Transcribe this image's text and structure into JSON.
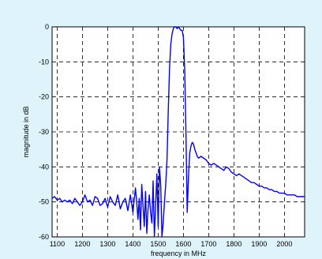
{
  "chart_data": {
    "type": "line",
    "title": "",
    "xlabel": "frequency in MHz",
    "ylabel": "magnitude in dB",
    "xlim": [
      1080,
      2080
    ],
    "ylim": [
      -60,
      0
    ],
    "xticks": [
      1100,
      1200,
      1300,
      1400,
      1500,
      1600,
      1700,
      1800,
      1900,
      2000
    ],
    "yticks": [
      0,
      -10,
      -20,
      -30,
      -40,
      -50,
      -60
    ],
    "grid": true,
    "grid_style": "dashed",
    "line_color": "#0000ff",
    "series": [
      {
        "x": [
          1080,
          1090,
          1100,
          1110,
          1120,
          1130,
          1140,
          1150,
          1160,
          1170,
          1180,
          1190,
          1200,
          1210,
          1220,
          1230,
          1240,
          1250,
          1260,
          1270,
          1280,
          1290,
          1300,
          1310,
          1320,
          1330,
          1340,
          1350,
          1360,
          1370,
          1380,
          1390,
          1400,
          1410,
          1415,
          1420,
          1425,
          1430,
          1435,
          1440,
          1445,
          1450,
          1455,
          1460,
          1465,
          1470,
          1475,
          1480,
          1485,
          1490,
          1495,
          1500,
          1505,
          1510,
          1515,
          1520,
          1525,
          1530,
          1535,
          1540,
          1545,
          1550,
          1555,
          1560,
          1565,
          1570,
          1575,
          1580,
          1585,
          1590,
          1595,
          1600,
          1605,
          1610,
          1615,
          1620,
          1625,
          1630,
          1635,
          1640,
          1645,
          1650,
          1655,
          1660,
          1670,
          1680,
          1690,
          1700,
          1710,
          1720,
          1730,
          1740,
          1750,
          1760,
          1770,
          1780,
          1790,
          1800,
          1810,
          1820,
          1830,
          1840,
          1850,
          1860,
          1870,
          1880,
          1890,
          1900,
          1910,
          1920,
          1930,
          1940,
          1950,
          1960,
          1970,
          1980,
          1990,
          2000,
          2010,
          2020,
          2030,
          2040,
          2050,
          2060,
          2070,
          2080
        ],
        "y": [
          -49,
          -48.5,
          -49.5,
          -49,
          -50,
          -49.5,
          -50,
          -49.5,
          -50.5,
          -49,
          -50,
          -51,
          -50,
          -48,
          -50,
          -49.5,
          -51,
          -48.5,
          -49,
          -51,
          -50.5,
          -49,
          -51.5,
          -48.5,
          -50,
          -51,
          -48,
          -52,
          -50,
          -49,
          -52.5,
          -48,
          -53,
          -46,
          -50,
          -55,
          -49,
          -58,
          -45,
          -51,
          -57,
          -47,
          -59,
          -52,
          -48,
          -53,
          -56,
          -44,
          -60,
          -51,
          -42,
          -57,
          -40,
          -45,
          -60,
          -56,
          -50,
          -45,
          -38,
          -24,
          -12,
          -5,
          -2,
          -0.5,
          0,
          0,
          -0.5,
          0,
          -0.5,
          -1,
          -1,
          -3,
          -12,
          -30,
          -53,
          -43,
          -36,
          -34,
          -33,
          -33.5,
          -35,
          -36,
          -37,
          -37.5,
          -37,
          -37.5,
          -38,
          -39,
          -39.5,
          -39,
          -39.5,
          -40,
          -40.5,
          -41,
          -40,
          -40.5,
          -41.5,
          -42,
          -42.5,
          -42,
          -42.5,
          -43,
          -43.5,
          -44,
          -44.5,
          -44.5,
          -45,
          -45.5,
          -45.5,
          -46,
          -46,
          -46.5,
          -46.5,
          -47,
          -47,
          -47.5,
          -47.5,
          -47.5,
          -48,
          -48,
          -48,
          -48,
          -48.5,
          -48.5,
          -48.5,
          -48.5
        ]
      }
    ]
  }
}
